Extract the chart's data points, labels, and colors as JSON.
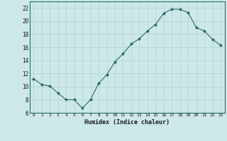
{
  "x": [
    0,
    1,
    2,
    3,
    4,
    5,
    6,
    7,
    8,
    9,
    10,
    11,
    12,
    13,
    14,
    15,
    16,
    17,
    18,
    19,
    20,
    21,
    22,
    23
  ],
  "y": [
    11.2,
    10.3,
    10.1,
    9.0,
    8.0,
    8.0,
    6.7,
    8.0,
    10.5,
    11.8,
    13.8,
    15.0,
    16.5,
    17.3,
    18.5,
    19.5,
    21.2,
    21.8,
    21.8,
    21.3,
    19.0,
    18.5,
    17.2,
    16.3
  ],
  "xlabel": "Humidex (Indice chaleur)",
  "bg_color": "#cce8e8",
  "line_color": "#2d6b6b",
  "grid_color": "#b8d4d4",
  "ylim": [
    6,
    23
  ],
  "xlim": [
    -0.5,
    23.5
  ],
  "yticks": [
    6,
    8,
    10,
    12,
    14,
    16,
    18,
    20,
    22
  ],
  "xticks": [
    0,
    1,
    2,
    3,
    4,
    5,
    6,
    7,
    8,
    9,
    10,
    11,
    12,
    13,
    14,
    15,
    16,
    17,
    18,
    19,
    20,
    21,
    22,
    23
  ]
}
